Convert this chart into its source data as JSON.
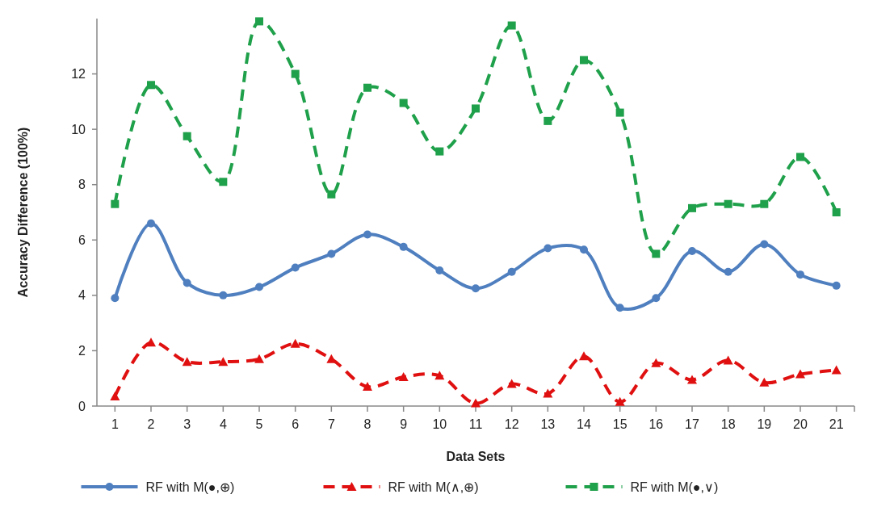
{
  "chart_data": {
    "type": "line",
    "xlabel": "Data Sets",
    "ylabel": "Accuracy  Difference (100%)",
    "categories": [
      "1",
      "2",
      "3",
      "4",
      "5",
      "6",
      "7",
      "8",
      "9",
      "10",
      "11",
      "12",
      "13",
      "14",
      "15",
      "16",
      "17",
      "18",
      "19",
      "20",
      "21"
    ],
    "ylim": [
      0,
      14
    ],
    "yticks": [
      0,
      2,
      4,
      6,
      8,
      10,
      12
    ],
    "grid": false,
    "legend": "bottom",
    "series": [
      {
        "name": "RF with M(●,⊕)",
        "color": "#4f7fbf",
        "marker": "circle",
        "line_style": "solid",
        "values": [
          3.9,
          6.6,
          4.45,
          4.0,
          4.3,
          5.0,
          5.5,
          6.2,
          5.75,
          4.9,
          4.25,
          4.85,
          5.7,
          5.65,
          3.55,
          3.9,
          5.6,
          4.85,
          5.85,
          4.75,
          4.35
        ]
      },
      {
        "name": "RF with M(∧,⊕)",
        "color": "#e01010",
        "marker": "triangle",
        "line_style": "dashed",
        "values": [
          0.35,
          2.3,
          1.6,
          1.6,
          1.7,
          2.25,
          1.7,
          0.7,
          1.05,
          1.1,
          0.1,
          0.8,
          0.45,
          1.8,
          0.15,
          1.55,
          0.95,
          1.65,
          0.85,
          1.15,
          1.3
        ]
      },
      {
        "name": "RF with M(●,∨)",
        "color": "#1fa04a",
        "marker": "square",
        "line_style": "dashed",
        "values": [
          7.3,
          11.6,
          9.75,
          8.1,
          13.9,
          12.0,
          7.65,
          11.5,
          10.95,
          9.2,
          10.75,
          13.75,
          10.3,
          12.5,
          10.6,
          5.5,
          7.15,
          7.3,
          7.3,
          9.0,
          7.0
        ]
      }
    ]
  }
}
